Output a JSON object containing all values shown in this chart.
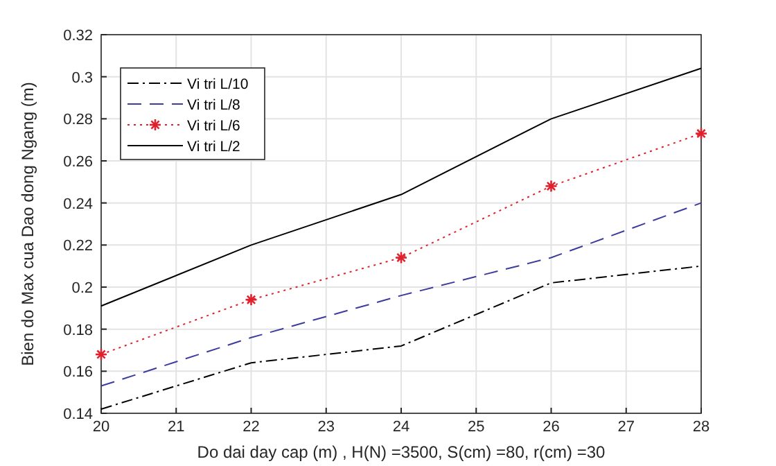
{
  "chart_data": {
    "type": "line",
    "xlabel": "Do dai day cap (m) , H(N) =3500, S(cm) =80, r(cm) =30",
    "ylabel": "Bien do Max cua Dao dong Ngang  (m)",
    "x": [
      20,
      22,
      24,
      26,
      28
    ],
    "xlim": [
      20,
      28
    ],
    "xticks": [
      20,
      21,
      22,
      23,
      24,
      25,
      26,
      27,
      28
    ],
    "ylim": [
      0.14,
      0.32
    ],
    "yticks": [
      0.14,
      0.16,
      0.18,
      0.2,
      0.22,
      0.24,
      0.26,
      0.28,
      0.3,
      0.32
    ],
    "grid": true,
    "legend": "top left",
    "series": [
      {
        "name": "Vi tri L/10",
        "color": "#000000",
        "line_style": "dashdot",
        "marker": "none",
        "values": [
          0.142,
          0.164,
          0.172,
          0.202,
          0.21
        ]
      },
      {
        "name": "Vi tri L/8",
        "color": "#3c3c9c",
        "line_style": "dashed",
        "marker": "none",
        "values": [
          0.153,
          0.176,
          0.196,
          0.214,
          0.24
        ]
      },
      {
        "name": "Vi tri L/6",
        "color": "#e0202c",
        "line_style": "dotted",
        "marker": "cross",
        "values": [
          0.168,
          0.194,
          0.214,
          0.248,
          0.273
        ]
      },
      {
        "name": "Vi tri L/2",
        "color": "#000000",
        "line_style": "solid",
        "marker": "none",
        "values": [
          0.191,
          0.22,
          0.244,
          0.28,
          0.304
        ]
      }
    ]
  }
}
